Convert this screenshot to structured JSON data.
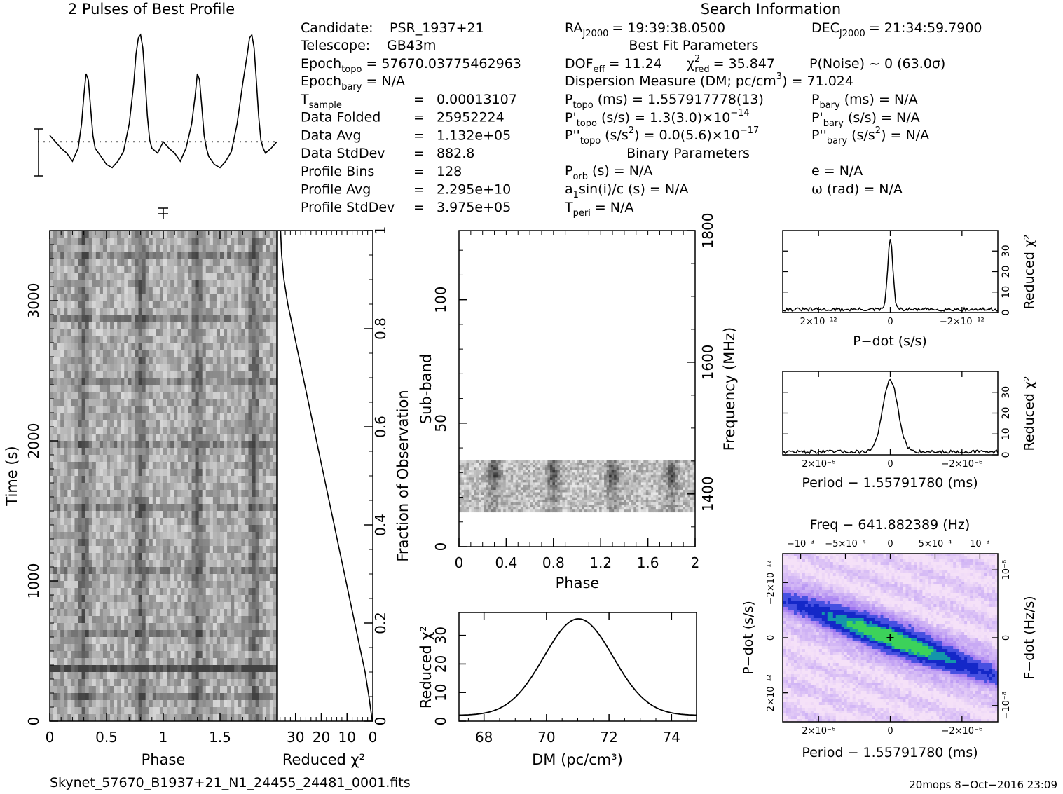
{
  "chart_data": [
    {
      "id": "profile",
      "type": "line",
      "title": "2 Pulses of Best Profile",
      "xlabel": "",
      "ylabel": "",
      "x": [
        0.0,
        0.05,
        0.1,
        0.15,
        0.2,
        0.25,
        0.28,
        0.3,
        0.32,
        0.34,
        0.36,
        0.38,
        0.4,
        0.45,
        0.5,
        0.55,
        0.6,
        0.65,
        0.7,
        0.74,
        0.76,
        0.78,
        0.8,
        0.82,
        0.84,
        0.86,
        0.88,
        0.9,
        0.95,
        1.0,
        1.05,
        1.1,
        1.15,
        1.2,
        1.25,
        1.28,
        1.3,
        1.32,
        1.34,
        1.36,
        1.38,
        1.4,
        1.45,
        1.5,
        1.55,
        1.6,
        1.65,
        1.7,
        1.74,
        1.76,
        1.78,
        1.8,
        1.82,
        1.84,
        1.86,
        1.88,
        1.9,
        1.95,
        2.0
      ],
      "y": [
        0.38,
        0.34,
        0.3,
        0.27,
        0.22,
        0.3,
        0.45,
        0.62,
        0.76,
        0.72,
        0.55,
        0.38,
        0.3,
        0.25,
        0.2,
        0.18,
        0.22,
        0.28,
        0.45,
        0.7,
        0.88,
        0.98,
        1.0,
        0.92,
        0.72,
        0.5,
        0.35,
        0.3,
        0.27,
        0.34,
        0.3,
        0.27,
        0.22,
        0.3,
        0.45,
        0.62,
        0.76,
        0.72,
        0.55,
        0.38,
        0.3,
        0.25,
        0.2,
        0.18,
        0.22,
        0.28,
        0.45,
        0.7,
        0.88,
        0.98,
        1.0,
        0.92,
        0.72,
        0.5,
        0.35,
        0.3,
        0.27,
        0.3,
        0.34
      ],
      "ylim": [
        0,
        1.05
      ],
      "xlim": [
        0,
        2
      ],
      "mean_line": 0.34
    },
    {
      "id": "time-phase",
      "type": "heatmap",
      "xlabel": "Phase",
      "ylabel": "Time (s)",
      "xlim": [
        0,
        2
      ],
      "ylim": [
        0,
        3500
      ],
      "xticks": [
        "0",
        "0.5",
        "1",
        "1.5"
      ],
      "xtick_values": [
        0,
        0.5,
        1,
        1.5
      ],
      "yticks": [
        "0",
        "1000",
        "2000",
        "3000"
      ],
      "ytick_values": [
        0,
        1000,
        2000,
        3000
      ],
      "colormap": "grayscale",
      "pulse_phases": [
        0.3,
        0.8,
        1.3,
        1.8
      ]
    },
    {
      "id": "reduced-chi2-time",
      "type": "line",
      "xlabel": "Reduced χ²",
      "ylabel": "Fraction of Observation",
      "xlim": [
        37,
        0
      ],
      "ylim": [
        0,
        1
      ],
      "xticks": [
        "30",
        "20",
        "10",
        "0"
      ],
      "xtick_values": [
        30,
        20,
        10,
        0
      ],
      "yticks": [
        "0",
        "0.2",
        "0.4",
        "0.6",
        "0.8",
        "1"
      ],
      "ytick_values": [
        0,
        0.2,
        0.4,
        0.6,
        0.8,
        1.0
      ],
      "x": [
        0.2,
        1.5,
        3,
        5,
        7,
        9,
        11,
        13,
        15,
        17,
        19,
        21,
        23,
        25,
        27,
        29,
        31,
        33,
        34.5,
        35.4,
        35.8
      ],
      "y": [
        0.0,
        0.05,
        0.1,
        0.15,
        0.2,
        0.25,
        0.3,
        0.35,
        0.4,
        0.45,
        0.5,
        0.55,
        0.6,
        0.65,
        0.7,
        0.75,
        0.8,
        0.85,
        0.9,
        0.95,
        1.0
      ]
    },
    {
      "id": "subband-phase",
      "type": "heatmap",
      "xlabel": "Phase",
      "ylabel": "Sub-band",
      "y2label": "Frequency (MHz)",
      "xlim": [
        0,
        2
      ],
      "ylim": [
        0,
        128
      ],
      "y2lim": [
        1320,
        1800
      ],
      "xticks": [
        "0",
        "0.4",
        "0.8",
        "1.2",
        "1.6",
        "2"
      ],
      "xtick_values": [
        0,
        0.4,
        0.8,
        1.2,
        1.6,
        2.0
      ],
      "yticks": [
        "0",
        "50",
        "100"
      ],
      "ytick_values": [
        0,
        50,
        100
      ],
      "y2ticks": [
        "1400",
        "1600",
        "1800"
      ],
      "y2tick_values": [
        1400,
        1600,
        1800
      ],
      "data_band": [
        14,
        35
      ],
      "colormap": "grayscale"
    },
    {
      "id": "dm-curve",
      "type": "line",
      "xlabel": "DM (pc/cm³)",
      "ylabel": "Reduced χ²",
      "xlim": [
        67.2,
        74.8
      ],
      "ylim": [
        0,
        38
      ],
      "xticks": [
        "68",
        "70",
        "72",
        "74"
      ],
      "xtick_values": [
        68,
        70,
        72,
        74
      ],
      "yticks": [
        "0",
        "10",
        "20",
        "30"
      ],
      "ytick_values": [
        0,
        10,
        20,
        30
      ],
      "peak_dm": 71.024,
      "peak_value": 35.8,
      "baseline": 2.0,
      "width": 1.05
    },
    {
      "id": "pdot-curve",
      "type": "line",
      "xlabel": "P−dot (s/s)",
      "ylabel": "Reduced χ²",
      "xlim": [
        3e-12,
        -3e-12
      ],
      "ylim": [
        0,
        40
      ],
      "xticks": [
        "2×10⁻¹²",
        "0",
        "−2×10⁻¹²"
      ],
      "xtick_values": [
        2e-12,
        0,
        -2e-12
      ],
      "yticks": [
        "0",
        "10",
        "20",
        "30"
      ],
      "ytick_values": [
        0,
        10,
        20,
        30
      ],
      "peak_value": 35.8,
      "baseline": 1.5
    },
    {
      "id": "period-curve",
      "type": "line",
      "xlabel": "Period − 1.55791780 (ms)",
      "ylabel": "Reduced χ²",
      "xlim": [
        3e-06,
        -3e-06
      ],
      "ylim": [
        0,
        40
      ],
      "xticks": [
        "2×10⁻⁶",
        "0",
        "−2×10⁻⁶"
      ],
      "xtick_values": [
        2e-06,
        0,
        -2e-06
      ],
      "yticks": [
        "0",
        "10",
        "20",
        "30"
      ],
      "ytick_values": [
        0,
        10,
        20,
        30
      ],
      "peak_value": 35.8,
      "baseline": 1.5
    },
    {
      "id": "period-pdot-map",
      "type": "heatmap",
      "title": "Freq − 641.882389 (Hz)",
      "xlabel": "Period − 1.55791780 (ms)",
      "ylabel": "P−dot (s/s)",
      "y2label": "F−dot (Hz/s)",
      "xticks": [
        "2×10⁻⁶",
        "0",
        "−2×10⁻⁶"
      ],
      "xtick_values": [
        2e-06,
        0,
        -2e-06
      ],
      "xlim": [
        3e-06,
        -3e-06
      ],
      "x2ticks": [
        "−10⁻³",
        "−5×10⁻⁴",
        "0",
        "5×10⁻⁴",
        "10⁻³"
      ],
      "x2tick_values": [
        -0.001,
        -0.0005,
        0,
        0.0005,
        0.001
      ],
      "x2lim": [
        -0.0012,
        0.0012
      ],
      "yticks": [
        "−2×10⁻¹²",
        "0",
        "2×10⁻¹²"
      ],
      "ytick_values": [
        -2e-12,
        0,
        2e-12
      ],
      "ylim": [
        -3.05e-12,
        3.05e-12
      ],
      "y2ticks": [
        "10⁻⁸",
        "0",
        "−10⁻⁸"
      ],
      "y2tick_values": [
        1e-08,
        0,
        -1e-08
      ],
      "y2lim": [
        -1.24e-08,
        1.24e-08
      ],
      "colormap": "white-purple-blue-green"
    }
  ],
  "info": {
    "candidate_label": "Candidate:",
    "candidate_value": "PSR_1937+21",
    "telescope_label": "Telescope:",
    "telescope_value": "GB43m",
    "epoch_topo": "Epoch",
    "epoch_topo_sub": "topo",
    "epoch_topo_value": "= 57670.03775462963",
    "epoch_bary": "Epoch",
    "epoch_bary_sub": "bary",
    "epoch_bary_value": "= N/A",
    "tsample": "T",
    "tsample_sub": "sample",
    "rows": [
      {
        "label": "",
        "eq": "=",
        "value": "0.00013107"
      },
      {
        "label": "Data Folded",
        "eq": "=",
        "value": "25952224"
      },
      {
        "label": "Data Avg",
        "eq": "=",
        "value": "1.132e+05"
      },
      {
        "label": "Data StdDev",
        "eq": "=",
        "value": "882.8"
      },
      {
        "label": "Profile Bins",
        "eq": "=",
        "value": "128"
      },
      {
        "label": "Profile Avg",
        "eq": "=",
        "value": "2.295e+10"
      },
      {
        "label": "Profile StdDev",
        "eq": "=",
        "value": "3.975e+05"
      }
    ]
  },
  "search": {
    "heading": "Search Information",
    "ra": "RA",
    "ra_sub": "J2000",
    "ra_value": "= 19:39:38.0500",
    "dec": "DEC",
    "dec_sub": "J2000",
    "dec_value": "= 21:34:59.7900",
    "bestfit_heading": "Best Fit Parameters",
    "dof": "DOF",
    "dof_sub": "eff",
    "dof_value": "= 11.24",
    "chi": "χ",
    "chi_sup": "2",
    "chi_sub": "red",
    "chi_value": "= 35.847",
    "pnoise": "P(Noise) ~ 0   (63.0σ)",
    "dm_line": "Dispersion Measure (DM; pc/cm",
    "dm_sup": "3",
    "dm_value": ") = 71.024",
    "ptopo": "P",
    "ptopo_sub": "topo",
    "ptopo_value": "(ms) =  1.557917778(13)",
    "pbary": "P",
    "pbary_sub": "bary",
    "pbary_value": "(ms) = N/A",
    "pdtopo": "P'",
    "pdtopo_sub": "topo",
    "pdtopo_value": "(s/s) =  1.3(3.0)×10",
    "pdtopo_exp": "−14",
    "pdbary": "P'",
    "pdbary_sub": "bary",
    "pdbary_value": "(s/s) = N/A",
    "pddtopo": "P''",
    "pddtopo_sub": "topo",
    "pddtopo_value": "(s/s",
    "pddtopo_sup": "2",
    "pddtopo_value2": ") = 0.0(5.6)×10",
    "pddtopo_exp": "−17",
    "pddbary": "P''",
    "pddbary_sub": "bary",
    "pddbary_value": "(s/s",
    "pddbary_sup": "2",
    "pddbary_value2": ") = N/A",
    "binary_heading": "Binary Parameters",
    "porb": "P",
    "porb_sub": "orb",
    "porb_value": "(s) = N/A",
    "ecc": "e = N/A",
    "a1": "a",
    "a1_sub": "1",
    "a1_value": "sin(i)/c (s) = N/A",
    "omega": "ω (rad) = N/A",
    "tperi": "T",
    "tperi_sub": "peri",
    "tperi_value": "= N/A"
  },
  "footer": {
    "filename": "Skynet_57670_B1937+21_N1_24455_24481_0001.fits",
    "credit": "20mops   8−Oct−2016 23:09"
  },
  "colors": {
    "ink": "#000000",
    "background": "#ffffff"
  }
}
